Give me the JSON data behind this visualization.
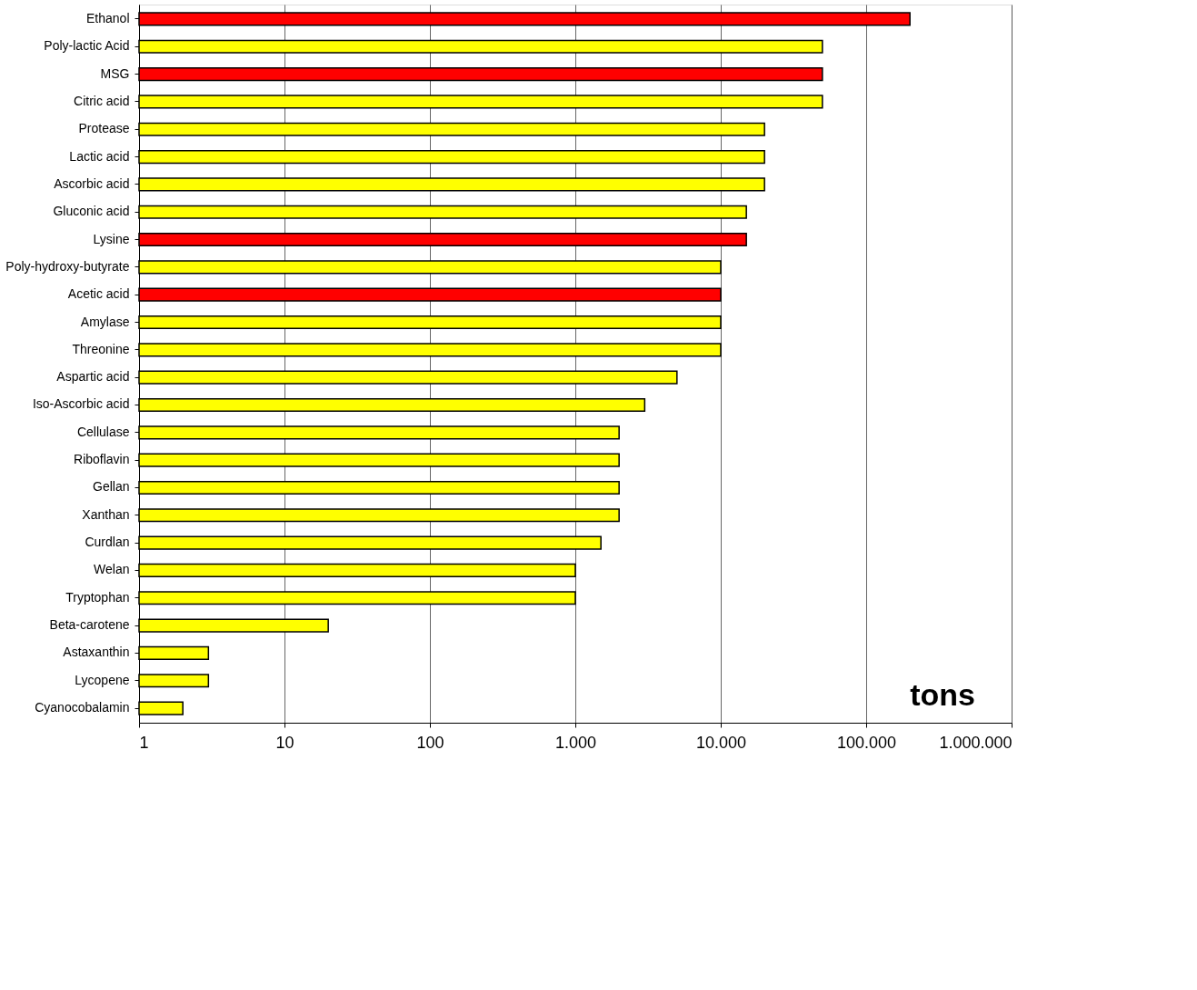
{
  "chart_data": {
    "type": "bar",
    "orientation": "horizontal",
    "log": "x",
    "grid": "x",
    "categories": [
      "Ethanol",
      "Poly-lactic Acid",
      "MSG",
      "Citric acid",
      "Protease",
      "Lactic acid",
      "Ascorbic acid",
      "Gluconic acid",
      "Lysine",
      "Poly-hydroxy-butyrate",
      "Acetic acid",
      "Amylase",
      "Threonine",
      "Aspartic acid",
      "Iso-Ascorbic acid",
      "Cellulase",
      "Riboflavin",
      "Gellan",
      "Xanthan",
      "Curdlan",
      "Welan",
      "Tryptophan",
      "Beta-carotene",
      "Astaxanthin",
      "Lycopene",
      "Cyanocobalamin"
    ],
    "values": [
      200000,
      50000,
      50000,
      50000,
      20000,
      20000,
      20000,
      15000,
      15000,
      10000,
      10000,
      10000,
      10000,
      5000,
      3000,
      2000,
      2000,
      2000,
      2000,
      1500,
      1000,
      1000,
      20,
      3,
      3,
      2
    ],
    "colors": [
      "#ff0000",
      "#ffff00",
      "#ff0000",
      "#ffff00",
      "#ffff00",
      "#ffff00",
      "#ffff00",
      "#ffff00",
      "#ff0000",
      "#ffff00",
      "#ff0000",
      "#ffff00",
      "#ffff00",
      "#ffff00",
      "#ffff00",
      "#ffff00",
      "#ffff00",
      "#ffff00",
      "#ffff00",
      "#ffff00",
      "#ffff00",
      "#ffff00",
      "#ffff00",
      "#ffff00",
      "#ffff00",
      "#ffff00"
    ],
    "xlim": [
      1,
      1000000
    ],
    "xticks": [
      1,
      10,
      100,
      {
        "value": 1000,
        "label": "1.000"
      },
      {
        "value": 10000,
        "label": "10.000"
      },
      {
        "value": 100000,
        "label": "100.000"
      },
      {
        "value": 1000000,
        "label": "1.000.000"
      }
    ],
    "annotations": [
      "tons"
    ]
  }
}
